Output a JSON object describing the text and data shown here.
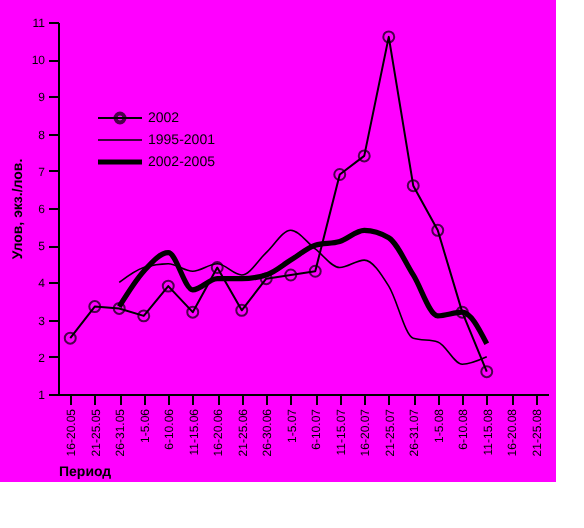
{
  "chart_data": {
    "type": "line",
    "xlabel": "Период",
    "ylabel": "Улов, экз./лов.",
    "categories": [
      "16-20.05",
      "21-25.05",
      "26-31.05",
      "1-5.06",
      "6-10.06",
      "11-15.06",
      "16-20.06",
      "21-25.06",
      "26-30.06",
      "1-5.07",
      "6-10.07",
      "11-15.07",
      "16-20.07",
      "21-25.07",
      "26-31.07",
      "1-5.08",
      "6-10.08",
      "11-15.08",
      "16-20.08",
      "21-25.08"
    ],
    "series": [
      {
        "name": "2002",
        "color": "#000000",
        "marker": "circle",
        "line_style": "solid",
        "values": [
          2.5,
          3.35,
          3.3,
          3.1,
          3.9,
          3.2,
          4.4,
          3.25,
          4.1,
          4.2,
          4.3,
          6.9,
          7.4,
          10.6,
          6.6,
          5.4,
          3.2,
          1.6,
          null,
          null
        ]
      },
      {
        "name": "1995-2001",
        "color": "#000000",
        "marker": "none",
        "line_style": "solid",
        "values": [
          null,
          null,
          4.0,
          4.4,
          4.5,
          4.3,
          4.5,
          4.2,
          4.8,
          5.4,
          4.9,
          4.4,
          4.6,
          3.9,
          2.5,
          2.4,
          1.8,
          2.0,
          null,
          null
        ]
      },
      {
        "name": "2002-2005",
        "color": "#000000",
        "marker": "none",
        "line_style": "solid",
        "values": [
          null,
          null,
          3.35,
          4.3,
          4.8,
          3.8,
          4.1,
          4.1,
          4.2,
          4.6,
          5.0,
          5.1,
          5.4,
          5.2,
          4.2,
          3.1,
          3.2,
          2.35,
          null,
          null
        ]
      }
    ],
    "ylim": [
      1,
      11
    ],
    "yticks": [
      1,
      2,
      3,
      4,
      5,
      6,
      7,
      8,
      9,
      10,
      11
    ],
    "grid": false,
    "legend": "top left"
  }
}
